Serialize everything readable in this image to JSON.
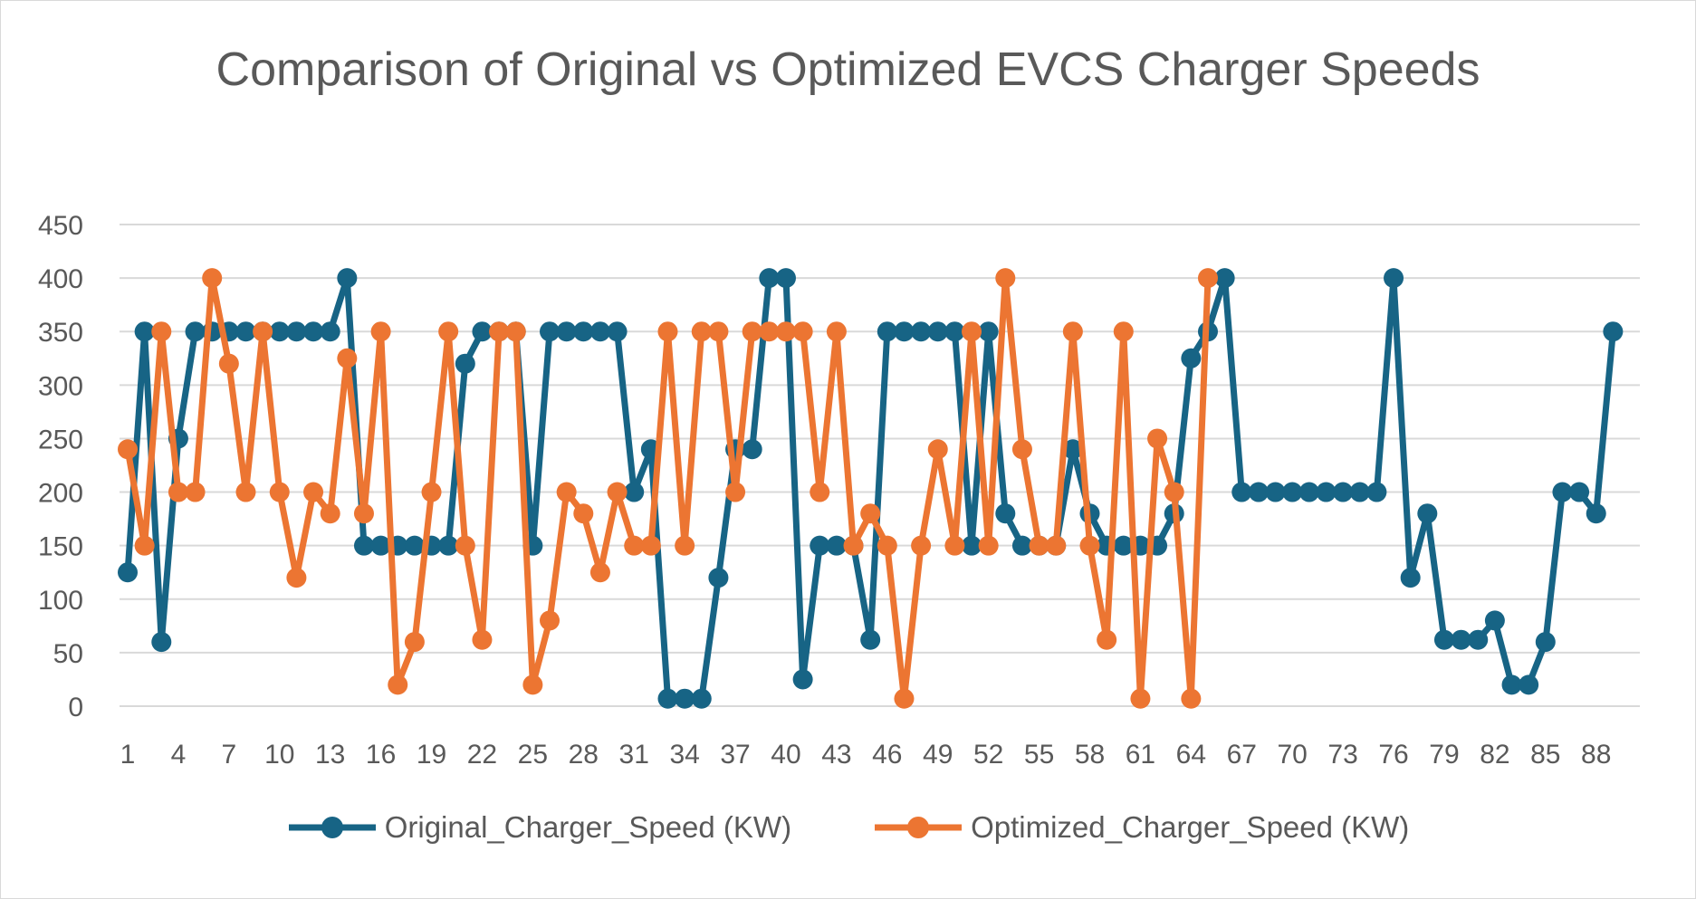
{
  "colors": {
    "original": "#176485",
    "optimized": "#ec7532",
    "grid": "#d9d9d9",
    "text": "#595959"
  },
  "chart_data": {
    "type": "line",
    "title": "Comparison of Original vs Optimized EVCS Charger Speeds",
    "xlabel": "",
    "ylabel": "",
    "ylim": [
      0,
      450
    ],
    "yticks": [
      0,
      50,
      100,
      150,
      200,
      250,
      300,
      350,
      400,
      450
    ],
    "xlim": [
      1,
      90
    ],
    "xtick_labels": [
      "1",
      "4",
      "7",
      "10",
      "13",
      "16",
      "19",
      "22",
      "25",
      "28",
      "31",
      "34",
      "37",
      "40",
      "43",
      "46",
      "49",
      "52",
      "55",
      "58",
      "61",
      "64",
      "67",
      "70",
      "73",
      "76",
      "79",
      "82",
      "85",
      "88"
    ],
    "grid": "horizontal",
    "legend": "bottom",
    "series": [
      {
        "name": "Original_Charger_Speed (KW)",
        "marker": "circle",
        "values": [
          125,
          350,
          60,
          250,
          350,
          350,
          350,
          350,
          350,
          350,
          350,
          350,
          350,
          400,
          150,
          150,
          150,
          150,
          150,
          150,
          320,
          350,
          350,
          350,
          150,
          350,
          350,
          350,
          350,
          350,
          200,
          240,
          7,
          7,
          7,
          120,
          240,
          240,
          400,
          400,
          25,
          150,
          150,
          150,
          62,
          350,
          350,
          350,
          350,
          350,
          150,
          350,
          180,
          150,
          150,
          150,
          240,
          180,
          150,
          150,
          150,
          150,
          180,
          325,
          350,
          400,
          200,
          200,
          200,
          200,
          200,
          200,
          200,
          200,
          200,
          400,
          120,
          180,
          62,
          62,
          62,
          80,
          20,
          20,
          60,
          200,
          200,
          180,
          350
        ]
      },
      {
        "name": "Optimized_Charger_Speed (KW)",
        "marker": "circle",
        "values": [
          240,
          150,
          350,
          200,
          200,
          400,
          320,
          200,
          350,
          200,
          120,
          200,
          180,
          325,
          180,
          350,
          20,
          60,
          200,
          350,
          150,
          62,
          350,
          350,
          20,
          80,
          200,
          180,
          125,
          200,
          150,
          150,
          350,
          150,
          350,
          350,
          200,
          350,
          350,
          350,
          350,
          200,
          350,
          150,
          180,
          150,
          7,
          150,
          240,
          150,
          350,
          150,
          400,
          240,
          150,
          150,
          350,
          150,
          62,
          350,
          7,
          250,
          200,
          7,
          400
        ]
      }
    ]
  }
}
